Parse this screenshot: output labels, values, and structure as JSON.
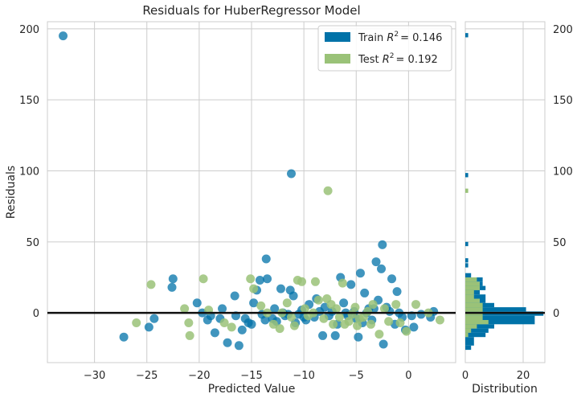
{
  "chart_data": {
    "type": "scatter",
    "title": "Residuals for HuberRegressor Model",
    "xlabel": "Predicted Value",
    "ylabel": "Residuals",
    "xlim": [
      -34.5,
      4.5
    ],
    "ylim": [
      -35,
      205
    ],
    "xticks": [
      -30,
      -25,
      -20,
      -15,
      -10,
      -5,
      0
    ],
    "yticks": [
      0,
      50,
      100,
      150,
      200
    ],
    "grid": true,
    "legend_position": "top-right",
    "zero_line": 0,
    "series": [
      {
        "name": "Train",
        "r2_label": "R",
        "r2_sup": "2",
        "r2_value": "= 0.146",
        "color": "#0072a8",
        "points": [
          [
            -33,
            195
          ],
          [
            -11.2,
            98
          ],
          [
            -27.2,
            -17
          ],
          [
            -24.8,
            -10
          ],
          [
            -24.3,
            -4
          ],
          [
            -22.5,
            24
          ],
          [
            -22.6,
            18
          ],
          [
            -20.2,
            7
          ],
          [
            -19.7,
            0
          ],
          [
            -19.2,
            -5
          ],
          [
            -18.9,
            -2
          ],
          [
            -18.5,
            -14
          ],
          [
            -18,
            -4
          ],
          [
            -17.8,
            3
          ],
          [
            -17.3,
            -21
          ],
          [
            -16.6,
            12
          ],
          [
            -16.5,
            -2
          ],
          [
            -16.2,
            -23
          ],
          [
            -15.9,
            -12
          ],
          [
            -15.6,
            -4
          ],
          [
            -15.3,
            -7
          ],
          [
            -15,
            -8
          ],
          [
            -14.8,
            7
          ],
          [
            -14.5,
            16
          ],
          [
            -14.2,
            23
          ],
          [
            -14,
            -1
          ],
          [
            -13.7,
            -5
          ],
          [
            -13.6,
            38
          ],
          [
            -13.5,
            24
          ],
          [
            -13,
            -4
          ],
          [
            -12.8,
            3
          ],
          [
            -12.6,
            -6
          ],
          [
            -12.2,
            17
          ],
          [
            -12,
            0
          ],
          [
            -11.8,
            -2
          ],
          [
            -11.5,
            -1
          ],
          [
            -11.3,
            16
          ],
          [
            -11,
            12
          ],
          [
            -10.8,
            -7
          ],
          [
            -10.5,
            -1
          ],
          [
            -10.2,
            2
          ],
          [
            -10,
            -3
          ],
          [
            -9.8,
            -5
          ],
          [
            -9.5,
            6
          ],
          [
            -9,
            -3
          ],
          [
            -8.8,
            10
          ],
          [
            -8.5,
            1
          ],
          [
            -8.2,
            -16
          ],
          [
            -8,
            4
          ],
          [
            -7.6,
            -2
          ],
          [
            -7.3,
            1
          ],
          [
            -7,
            -16
          ],
          [
            -6.8,
            -8
          ],
          [
            -6.5,
            25
          ],
          [
            -6.2,
            7
          ],
          [
            -6,
            0
          ],
          [
            -5.8,
            -2
          ],
          [
            -5.5,
            20
          ],
          [
            -5.2,
            1
          ],
          [
            -5,
            -4
          ],
          [
            -4.8,
            -17
          ],
          [
            -4.6,
            28
          ],
          [
            -4.4,
            -7
          ],
          [
            -4.2,
            14
          ],
          [
            -4,
            0
          ],
          [
            -3.8,
            3
          ],
          [
            -3.5,
            -5
          ],
          [
            -3.3,
            3
          ],
          [
            -3.1,
            36
          ],
          [
            -2.9,
            9
          ],
          [
            -2.6,
            31
          ],
          [
            -2.5,
            48
          ],
          [
            -2.4,
            -22
          ],
          [
            -2.1,
            4
          ],
          [
            -1.8,
            1
          ],
          [
            -1.6,
            24
          ],
          [
            -1.3,
            -8
          ],
          [
            -1.1,
            15
          ],
          [
            -0.9,
            0
          ],
          [
            -0.6,
            -3
          ],
          [
            -0.3,
            -12
          ],
          [
            0.3,
            -2
          ],
          [
            0.5,
            -10
          ],
          [
            1.2,
            -1
          ],
          [
            2.1,
            -3
          ],
          [
            2.4,
            1
          ]
        ]
      },
      {
        "name": "Test",
        "r2_label": "R",
        "r2_sup": "2",
        "r2_value": "= 0.192",
        "color": "#9ac278",
        "points": [
          [
            -7.7,
            86
          ],
          [
            -26,
            -7
          ],
          [
            -24.6,
            20
          ],
          [
            -21.4,
            3
          ],
          [
            -21,
            -7
          ],
          [
            -20.9,
            -16
          ],
          [
            -19.6,
            24
          ],
          [
            -19.1,
            2
          ],
          [
            -17.6,
            -7
          ],
          [
            -16.9,
            -10
          ],
          [
            -15.1,
            24
          ],
          [
            -14.8,
            17
          ],
          [
            -14.1,
            5
          ],
          [
            -13.5,
            0
          ],
          [
            -12.9,
            -8
          ],
          [
            -12.3,
            -11
          ],
          [
            -12.1,
            0
          ],
          [
            -11.6,
            7
          ],
          [
            -11.2,
            -3
          ],
          [
            -10.9,
            -9
          ],
          [
            -10.6,
            23
          ],
          [
            -10.2,
            22
          ],
          [
            -9.9,
            3
          ],
          [
            -9.6,
            -2
          ],
          [
            -9.1,
            0
          ],
          [
            -8.9,
            22
          ],
          [
            -8.6,
            9
          ],
          [
            -8.1,
            -4
          ],
          [
            -7.8,
            10
          ],
          [
            -7.4,
            6
          ],
          [
            -7.2,
            -8
          ],
          [
            -6.9,
            3
          ],
          [
            -6.6,
            -3
          ],
          [
            -6.3,
            21
          ],
          [
            -6.1,
            -8
          ],
          [
            -5.7,
            -6
          ],
          [
            -5.4,
            -1
          ],
          [
            -5.1,
            4
          ],
          [
            -4.9,
            -9
          ],
          [
            -4.7,
            -4
          ],
          [
            -4.3,
            -3
          ],
          [
            -3.9,
            1
          ],
          [
            -3.6,
            -8
          ],
          [
            -3.4,
            6
          ],
          [
            -2.8,
            -15
          ],
          [
            -2.3,
            3
          ],
          [
            -1.9,
            -6
          ],
          [
            -1.2,
            6
          ],
          [
            -0.8,
            -7
          ],
          [
            -0.2,
            -13
          ],
          [
            0.7,
            6
          ],
          [
            1.9,
            0
          ],
          [
            3,
            -5
          ]
        ]
      }
    ],
    "distribution": {
      "xlabel": "Distribution",
      "xlim": [
        0,
        27.5
      ],
      "xticks": [
        0,
        20
      ],
      "bin_width": 3,
      "train_counts": [
        {
          "y": 195.5,
          "count": 1
        },
        {
          "y": 97,
          "count": 1
        },
        {
          "y": 48.5,
          "count": 1
        },
        {
          "y": 37,
          "count": 1
        },
        {
          "y": 33.5,
          "count": 1
        },
        {
          "y": 26.5,
          "count": 2
        },
        {
          "y": 23.5,
          "count": 6
        },
        {
          "y": 20.5,
          "count": 6
        },
        {
          "y": 17.5,
          "count": 7
        },
        {
          "y": 14.5,
          "count": 5
        },
        {
          "y": 11.5,
          "count": 7
        },
        {
          "y": 8.5,
          "count": 7
        },
        {
          "y": 5.5,
          "count": 10
        },
        {
          "y": 2.5,
          "count": 21
        },
        {
          "y": -0.5,
          "count": 27
        },
        {
          "y": -3.5,
          "count": 24
        },
        {
          "y": -6.5,
          "count": 24
        },
        {
          "y": -9.5,
          "count": 10
        },
        {
          "y": -12.5,
          "count": 8
        },
        {
          "y": -15.5,
          "count": 7
        },
        {
          "y": -18.5,
          "count": 3
        },
        {
          "y": -21.5,
          "count": 3
        },
        {
          "y": -24.5,
          "count": 2
        }
      ],
      "test_counts": [
        {
          "y": 86,
          "count": 1
        },
        {
          "y": 23.5,
          "count": 4
        },
        {
          "y": 20.5,
          "count": 5
        },
        {
          "y": 17.5,
          "count": 5
        },
        {
          "y": 14.5,
          "count": 3
        },
        {
          "y": 11.5,
          "count": 3
        },
        {
          "y": 8.5,
          "count": 5
        },
        {
          "y": 5.5,
          "count": 6
        },
        {
          "y": 2.5,
          "count": 6
        },
        {
          "y": -0.5,
          "count": 6
        },
        {
          "y": -3.5,
          "count": 6
        },
        {
          "y": -6.5,
          "count": 8
        },
        {
          "y": -9.5,
          "count": 4
        },
        {
          "y": -12.5,
          "count": 2
        },
        {
          "y": -15.5,
          "count": 1
        }
      ]
    }
  }
}
